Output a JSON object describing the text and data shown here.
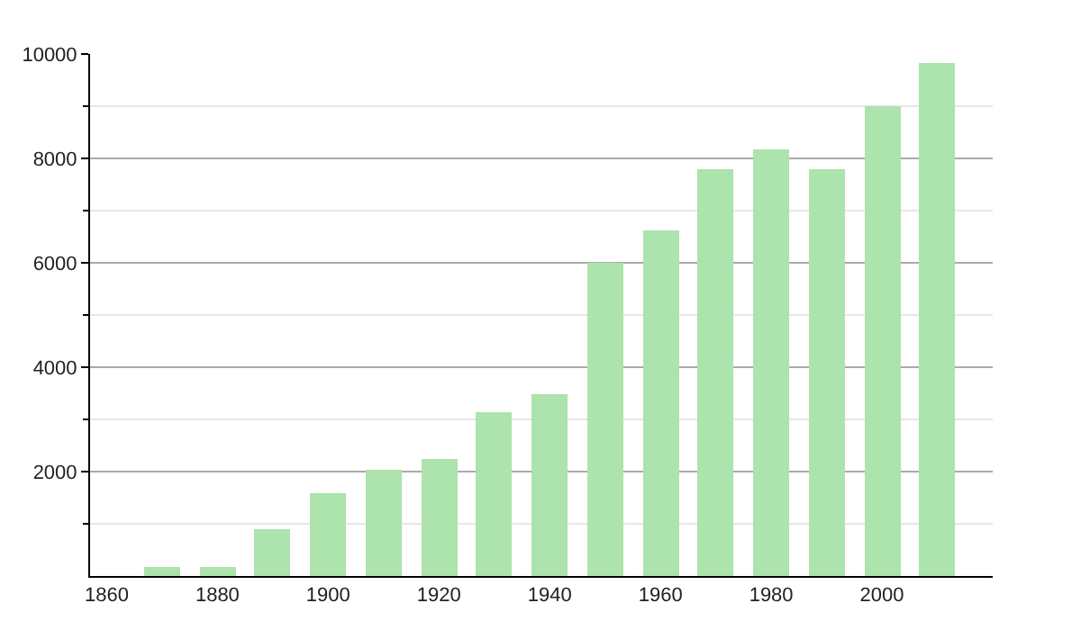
{
  "chart_data": {
    "type": "bar",
    "x": [
      1870,
      1880,
      1890,
      1900,
      1910,
      1920,
      1930,
      1940,
      1950,
      1960,
      1970,
      1980,
      1990,
      2000,
      2010
    ],
    "values": [
      170,
      170,
      900,
      1590,
      2050,
      2250,
      3150,
      3480,
      6010,
      6630,
      7810,
      8180,
      7810,
      8990,
      9840
    ],
    "color": "#ade3ad",
    "xlim": [
      1857,
      2020
    ],
    "xticks": [
      1860,
      1880,
      1900,
      1920,
      1940,
      1960,
      1980,
      2000
    ],
    "ylim": [
      0,
      10000
    ],
    "yticks": [
      {
        "value": 1000,
        "label": null
      },
      2000,
      {
        "value": 3000,
        "label": null
      },
      4000,
      {
        "value": 5000,
        "label": null
      },
      6000,
      {
        "value": 7000,
        "label": null
      },
      8000,
      {
        "value": 9000,
        "label": null
      },
      10000
    ],
    "grid": "y",
    "legend": false
  }
}
